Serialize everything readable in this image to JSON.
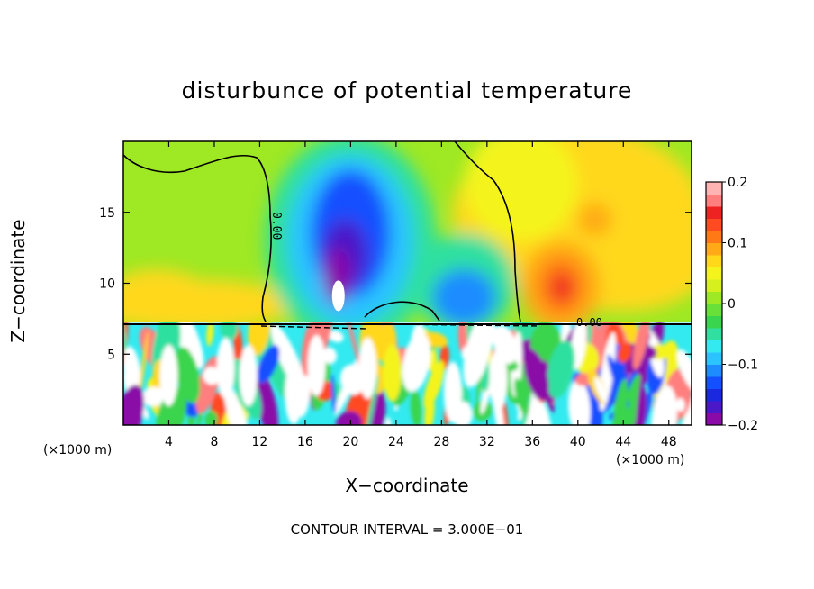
{
  "chart_data": {
    "type": "heatmap",
    "title": "disturbunce of potential temperature",
    "xlabel": "X−coordinate",
    "ylabel": "Z−coordinate",
    "x_unit": "(×1000 m)",
    "x_unit_bottom_right": "(×1000 m)",
    "xlim": [
      0,
      50
    ],
    "ylim": [
      0,
      20
    ],
    "x_ticks": [
      4,
      8,
      12,
      16,
      20,
      24,
      28,
      32,
      36,
      40,
      44,
      48
    ],
    "y_ticks": [
      5,
      10,
      15
    ],
    "colorbar": {
      "range": [
        -0.2,
        0.2
      ],
      "ticks": [
        -0.2,
        -0.1,
        0,
        0.1,
        0.2
      ],
      "tick_labels": [
        "−0.2",
        "−0.1",
        "0",
        "0.1",
        "0.2"
      ],
      "colors": [
        "#8a0aa8",
        "#4a18c8",
        "#1a28e0",
        "#1450ff",
        "#1e8cff",
        "#2cc4ff",
        "#33eaf0",
        "#2fe0a0",
        "#3ad44e",
        "#69e03a",
        "#9ee824",
        "#d6f01e",
        "#f4f41c",
        "#ffd81a",
        "#ffaa16",
        "#ff7a16",
        "#ff4a22",
        "#ee2222",
        "#ff7e7e",
        "#ffb4b4"
      ]
    },
    "contour_label": "0.00",
    "contour_interval_text": "CONTOUR INTERVAL = 3.000E−01",
    "features": [
      {
        "name": "negative core",
        "x": 20,
        "z": 13.5,
        "value": -0.18
      },
      {
        "name": "negative lobe",
        "x": 30,
        "z": 9,
        "value": -0.12
      },
      {
        "name": "positive core",
        "x": 38.5,
        "z": 9.8,
        "value": 0.14
      },
      {
        "name": "positive band",
        "x": 6,
        "z": 8.5,
        "value": 0.06
      },
      {
        "name": "minimum",
        "x": 18.5,
        "z": 10.5,
        "value": -0.22
      },
      {
        "name": "maximum",
        "x": 19,
        "z": 9.5,
        "value": 0.3
      }
    ],
    "inversion_height": 7.2
  }
}
